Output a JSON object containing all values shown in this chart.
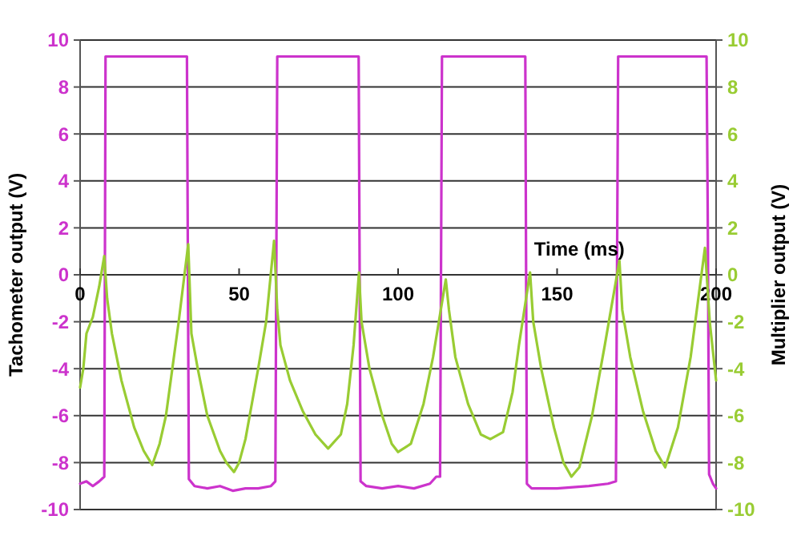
{
  "chart_data": {
    "type": "line",
    "xlabel": "Time (ms)",
    "ylabel": "Tachometer output (V)",
    "y2label": "Multiplier output (V)",
    "xlim": [
      0,
      200
    ],
    "xticks": [
      0,
      50,
      100,
      150,
      200
    ],
    "ylim": [
      -10,
      10
    ],
    "yticks": [
      -10,
      -8,
      -6,
      -4,
      -2,
      0,
      2,
      4,
      6,
      8,
      10
    ],
    "y2lim": [
      -10,
      10
    ],
    "y2ticks": [
      -10,
      -8,
      -6,
      -4,
      -2,
      0,
      2,
      4,
      6,
      8,
      10
    ],
    "grid": "y",
    "line_style": "solid",
    "marker": "none",
    "series": [
      {
        "color": "#cc33cc",
        "x": [
          0,
          2,
          4,
          6,
          7.6,
          8,
          33.6,
          34.2,
          36,
          40,
          44,
          48,
          52,
          56,
          60,
          61.4,
          62,
          87.6,
          88.2,
          90,
          95,
          100,
          105,
          110,
          112,
          113.2,
          113.8,
          140,
          140.5,
          142,
          150,
          160,
          166,
          168.5,
          169.2,
          197,
          197.4,
          197.8,
          199,
          200
        ],
        "values": [
          -8.9,
          -8.8,
          -9,
          -8.8,
          -8.6,
          9.3,
          9.3,
          -8.7,
          -9,
          -9.1,
          -9,
          -9.2,
          -9.1,
          -9.1,
          -9,
          -8.8,
          9.3,
          9.3,
          -8.8,
          -9,
          -9.1,
          -9,
          -9.1,
          -8.9,
          -8.6,
          -8.6,
          9.3,
          9.3,
          -8.9,
          -9.1,
          -9.1,
          -9,
          -8.9,
          -8.8,
          9.3,
          9.3,
          2,
          -8.5,
          -8.9,
          -9.1
        ]
      },
      {
        "color": "#99cc33",
        "axis": "y2",
        "x": [
          0,
          1,
          2,
          4,
          6,
          7.6,
          8.5,
          10,
          13,
          17,
          20,
          22.7,
          25,
          27,
          29,
          31,
          34,
          35,
          37,
          40,
          44,
          46,
          48.4,
          50,
          52,
          56,
          58.5,
          61,
          62,
          63,
          66,
          70,
          74,
          78,
          82,
          84,
          86,
          87.7,
          88.5,
          91,
          95,
          98,
          100,
          104,
          108,
          111,
          115,
          116,
          118,
          122,
          126,
          129,
          133,
          136,
          138,
          141.5,
          142.5,
          145,
          149,
          152,
          154.5,
          157,
          161,
          165,
          169.6,
          170.5,
          173,
          177,
          181,
          184,
          188,
          192,
          196.5,
          198,
          200
        ],
        "values": [
          -4.8,
          -4,
          -2.5,
          -1.8,
          -0.5,
          0.8,
          -1,
          -2.5,
          -4.5,
          -6.5,
          -7.5,
          -8.1,
          -7.2,
          -6,
          -4,
          -2,
          1.3,
          -2.5,
          -4,
          -6,
          -7.5,
          -8,
          -8.4,
          -8,
          -7,
          -4,
          -2,
          1.45,
          -1.5,
          -3,
          -4.5,
          -5.8,
          -6.8,
          -7.4,
          -6.8,
          -5.5,
          -3,
          0.1,
          -2,
          -4,
          -6,
          -7.2,
          -7.55,
          -7.2,
          -5.5,
          -3.5,
          -0.2,
          -1.5,
          -3.5,
          -5.5,
          -6.8,
          -7,
          -6.7,
          -5,
          -3,
          0.1,
          -2,
          -4,
          -6.5,
          -8,
          -8.6,
          -8.2,
          -6,
          -3,
          0.6,
          -1.5,
          -3.5,
          -5.8,
          -7.5,
          -8.2,
          -6.5,
          -3.5,
          1.15,
          -2,
          -4.5
        ]
      }
    ]
  }
}
